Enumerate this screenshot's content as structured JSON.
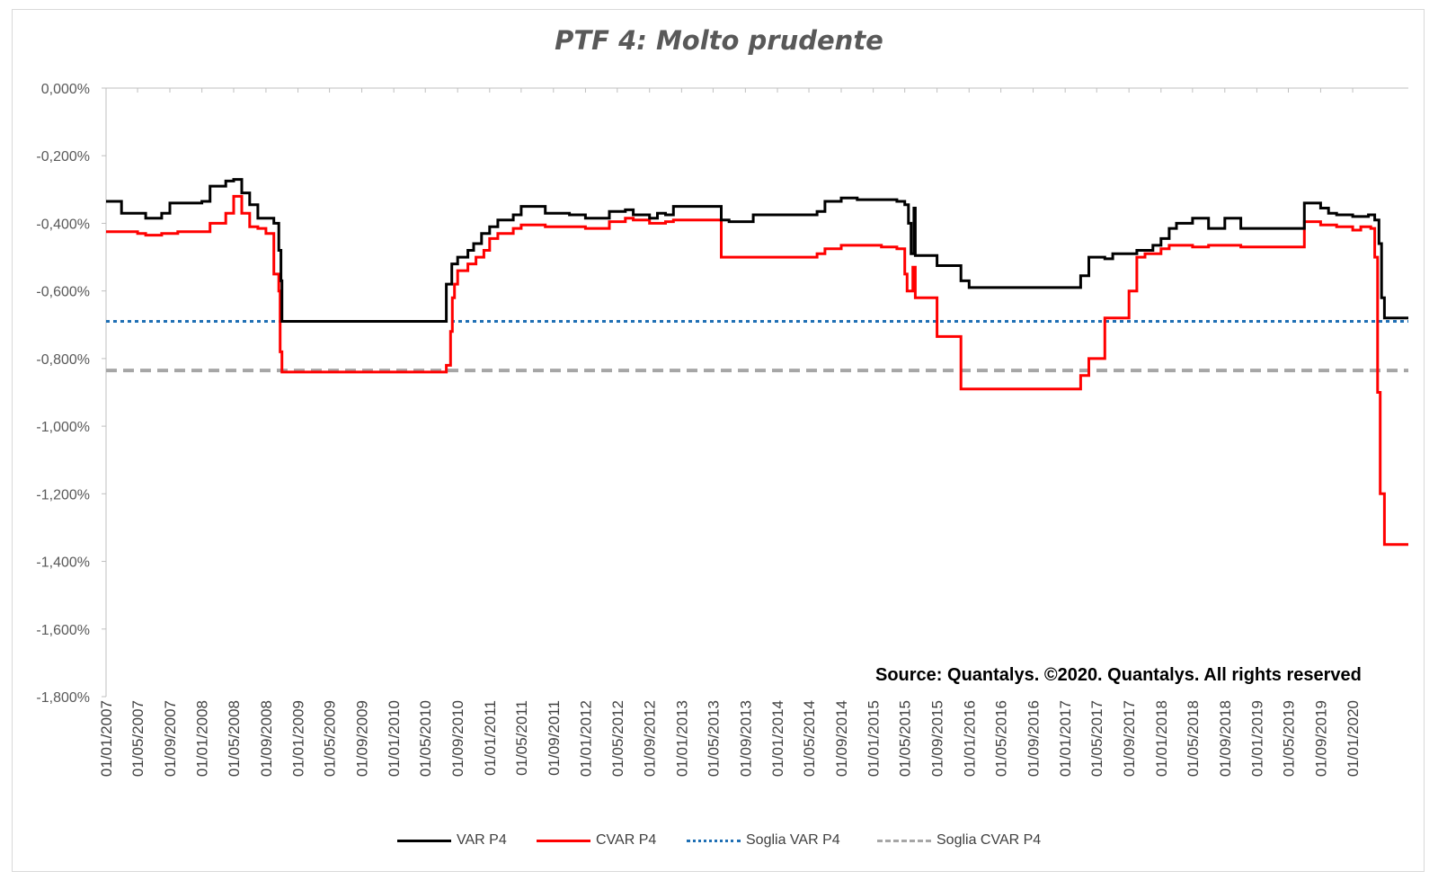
{
  "chart_data": {
    "type": "line",
    "title": "PTF 4: Molto prudente",
    "source_note": "Source: Quantalys. ©2020. Quantalys. All rights reserved",
    "xlabel": "",
    "ylabel": "",
    "ylim": [
      -1.8,
      0
    ],
    "y_ticks": [
      "0,000%",
      "-0,200%",
      "-0,400%",
      "-0,600%",
      "-0,800%",
      "-1,000%",
      "-1,200%",
      "-1,400%",
      "-1,600%",
      "-1,800%"
    ],
    "x_range": [
      "2007-01-01",
      "2020-07-31"
    ],
    "x_ticks": [
      "01/01/2007",
      "01/05/2007",
      "01/09/2007",
      "01/01/2008",
      "01/05/2008",
      "01/09/2008",
      "01/01/2009",
      "01/05/2009",
      "01/09/2009",
      "01/01/2010",
      "01/05/2010",
      "01/09/2010",
      "01/01/2011",
      "01/05/2011",
      "01/09/2011",
      "01/01/2012",
      "01/05/2012",
      "01/09/2012",
      "01/01/2013",
      "01/05/2013",
      "01/09/2013",
      "01/01/2014",
      "01/05/2014",
      "01/09/2014",
      "01/01/2015",
      "01/05/2015",
      "01/09/2015",
      "01/01/2016",
      "01/05/2016",
      "01/09/2016",
      "01/01/2017",
      "01/05/2017",
      "01/09/2017",
      "01/01/2018",
      "01/05/2018",
      "01/09/2018",
      "01/01/2019",
      "01/05/2019",
      "01/09/2019",
      "01/01/2020"
    ],
    "grid": false,
    "legend_position": "bottom",
    "series": [
      {
        "name": "VAR  P4",
        "color": "#000000",
        "style": "solid",
        "step": true,
        "points": [
          [
            "2007-01-01",
            -0.335
          ],
          [
            "2007-03-01",
            -0.37
          ],
          [
            "2007-06-01",
            -0.385
          ],
          [
            "2007-08-01",
            -0.37
          ],
          [
            "2007-09-01",
            -0.34
          ],
          [
            "2008-01-01",
            -0.335
          ],
          [
            "2008-02-01",
            -0.29
          ],
          [
            "2008-04-01",
            -0.275
          ],
          [
            "2008-05-01",
            -0.27
          ],
          [
            "2008-06-01",
            -0.31
          ],
          [
            "2008-07-01",
            -0.345
          ],
          [
            "2008-08-01",
            -0.385
          ],
          [
            "2008-10-01",
            -0.4
          ],
          [
            "2008-10-20",
            -0.48
          ],
          [
            "2008-10-28",
            -0.57
          ],
          [
            "2008-11-01",
            -0.69
          ],
          [
            "2010-07-20",
            -0.58
          ],
          [
            "2010-08-10",
            -0.52
          ],
          [
            "2010-09-01",
            -0.5
          ],
          [
            "2010-10-10",
            -0.48
          ],
          [
            "2010-11-01",
            -0.46
          ],
          [
            "2010-12-01",
            -0.43
          ],
          [
            "2011-01-01",
            -0.41
          ],
          [
            "2011-02-01",
            -0.39
          ],
          [
            "2011-04-01",
            -0.375
          ],
          [
            "2011-05-01",
            -0.35
          ],
          [
            "2011-08-01",
            -0.37
          ],
          [
            "2011-11-01",
            -0.375
          ],
          [
            "2012-01-01",
            -0.385
          ],
          [
            "2012-04-01",
            -0.365
          ],
          [
            "2012-06-01",
            -0.36
          ],
          [
            "2012-07-01",
            -0.375
          ],
          [
            "2012-09-01",
            -0.385
          ],
          [
            "2012-10-01",
            -0.37
          ],
          [
            "2012-11-01",
            -0.375
          ],
          [
            "2012-12-01",
            -0.35
          ],
          [
            "2013-06-01",
            -0.39
          ],
          [
            "2013-07-01",
            -0.395
          ],
          [
            "2013-10-01",
            -0.375
          ],
          [
            "2014-06-01",
            -0.365
          ],
          [
            "2014-07-01",
            -0.335
          ],
          [
            "2014-09-01",
            -0.325
          ],
          [
            "2014-11-01",
            -0.33
          ],
          [
            "2015-04-01",
            -0.335
          ],
          [
            "2015-05-01",
            -0.345
          ],
          [
            "2015-05-15",
            -0.4
          ],
          [
            "2015-05-25",
            -0.49
          ],
          [
            "2015-06-05",
            -0.355
          ],
          [
            "2015-06-10",
            -0.495
          ],
          [
            "2015-09-01",
            -0.525
          ],
          [
            "2015-12-01",
            -0.57
          ],
          [
            "2016-01-01",
            -0.59
          ],
          [
            "2017-03-01",
            -0.555
          ],
          [
            "2017-04-01",
            -0.5
          ],
          [
            "2017-06-01",
            -0.505
          ],
          [
            "2017-07-01",
            -0.49
          ],
          [
            "2017-10-01",
            -0.48
          ],
          [
            "2017-12-01",
            -0.465
          ],
          [
            "2018-01-01",
            -0.445
          ],
          [
            "2018-02-01",
            -0.415
          ],
          [
            "2018-03-01",
            -0.4
          ],
          [
            "2018-05-01",
            -0.385
          ],
          [
            "2018-07-01",
            -0.415
          ],
          [
            "2018-09-01",
            -0.385
          ],
          [
            "2018-11-01",
            -0.415
          ],
          [
            "2019-07-01",
            -0.34
          ],
          [
            "2019-09-01",
            -0.355
          ],
          [
            "2019-10-01",
            -0.37
          ],
          [
            "2019-11-01",
            -0.375
          ],
          [
            "2020-01-01",
            -0.38
          ],
          [
            "2020-03-01",
            -0.375
          ],
          [
            "2020-03-25",
            -0.39
          ],
          [
            "2020-04-10",
            -0.46
          ],
          [
            "2020-04-20",
            -0.62
          ],
          [
            "2020-05-01",
            -0.68
          ],
          [
            "2020-07-31",
            -0.68
          ]
        ]
      },
      {
        "name": "CVAR P4",
        "color": "#ff0000",
        "style": "solid",
        "step": true,
        "points": [
          [
            "2007-01-01",
            -0.425
          ],
          [
            "2007-05-01",
            -0.43
          ],
          [
            "2007-06-01",
            -0.435
          ],
          [
            "2007-08-01",
            -0.43
          ],
          [
            "2007-10-01",
            -0.425
          ],
          [
            "2008-02-01",
            -0.4
          ],
          [
            "2008-04-01",
            -0.37
          ],
          [
            "2008-05-01",
            -0.32
          ],
          [
            "2008-06-01",
            -0.37
          ],
          [
            "2008-07-01",
            -0.41
          ],
          [
            "2008-08-01",
            -0.415
          ],
          [
            "2008-09-01",
            -0.43
          ],
          [
            "2008-10-01",
            -0.55
          ],
          [
            "2008-10-20",
            -0.6
          ],
          [
            "2008-10-25",
            -0.78
          ],
          [
            "2008-11-01",
            -0.84
          ],
          [
            "2010-07-20",
            -0.82
          ],
          [
            "2010-08-05",
            -0.72
          ],
          [
            "2010-08-12",
            -0.62
          ],
          [
            "2010-08-20",
            -0.58
          ],
          [
            "2010-09-01",
            -0.54
          ],
          [
            "2010-10-10",
            -0.52
          ],
          [
            "2010-11-10",
            -0.5
          ],
          [
            "2010-12-10",
            -0.48
          ],
          [
            "2011-01-01",
            -0.445
          ],
          [
            "2011-02-01",
            -0.43
          ],
          [
            "2011-04-01",
            -0.415
          ],
          [
            "2011-05-01",
            -0.405
          ],
          [
            "2011-08-01",
            -0.41
          ],
          [
            "2011-11-01",
            -0.41
          ],
          [
            "2012-01-01",
            -0.415
          ],
          [
            "2012-04-01",
            -0.395
          ],
          [
            "2012-06-01",
            -0.385
          ],
          [
            "2012-07-01",
            -0.39
          ],
          [
            "2012-09-01",
            -0.4
          ],
          [
            "2012-11-01",
            -0.395
          ],
          [
            "2012-12-01",
            -0.39
          ],
          [
            "2013-06-01",
            -0.5
          ],
          [
            "2014-06-01",
            -0.49
          ],
          [
            "2014-07-01",
            -0.475
          ],
          [
            "2014-09-01",
            -0.465
          ],
          [
            "2014-11-01",
            -0.465
          ],
          [
            "2015-02-01",
            -0.47
          ],
          [
            "2015-04-01",
            -0.475
          ],
          [
            "2015-05-01",
            -0.55
          ],
          [
            "2015-05-10",
            -0.6
          ],
          [
            "2015-06-01",
            -0.53
          ],
          [
            "2015-06-10",
            -0.62
          ],
          [
            "2015-09-01",
            -0.735
          ],
          [
            "2015-12-01",
            -0.89
          ],
          [
            "2017-03-01",
            -0.85
          ],
          [
            "2017-04-01",
            -0.8
          ],
          [
            "2017-06-01",
            -0.68
          ],
          [
            "2017-09-01",
            -0.6
          ],
          [
            "2017-10-01",
            -0.5
          ],
          [
            "2017-11-01",
            -0.49
          ],
          [
            "2018-01-01",
            -0.475
          ],
          [
            "2018-02-01",
            -0.465
          ],
          [
            "2018-05-01",
            -0.47
          ],
          [
            "2018-07-01",
            -0.465
          ],
          [
            "2018-09-01",
            -0.465
          ],
          [
            "2018-11-01",
            -0.47
          ],
          [
            "2019-07-01",
            -0.395
          ],
          [
            "2019-09-01",
            -0.405
          ],
          [
            "2019-11-01",
            -0.41
          ],
          [
            "2020-01-01",
            -0.42
          ],
          [
            "2020-02-01",
            -0.41
          ],
          [
            "2020-03-10",
            -0.415
          ],
          [
            "2020-03-25",
            -0.5
          ],
          [
            "2020-04-05",
            -0.9
          ],
          [
            "2020-04-15",
            -1.2
          ],
          [
            "2020-05-01",
            -1.35
          ],
          [
            "2020-07-31",
            -1.35
          ]
        ]
      },
      {
        "name": "Soglia VAR  P4",
        "color": "#1f6fb4",
        "style": "dotted",
        "step": false,
        "points": [
          [
            "2007-01-01",
            -0.69
          ],
          [
            "2020-07-31",
            -0.69
          ]
        ]
      },
      {
        "name": "Soglia CVAR  P4",
        "color": "#a6a6a6",
        "style": "dashed",
        "step": false,
        "points": [
          [
            "2007-01-01",
            -0.835
          ],
          [
            "2020-07-31",
            -0.835
          ]
        ]
      }
    ]
  }
}
